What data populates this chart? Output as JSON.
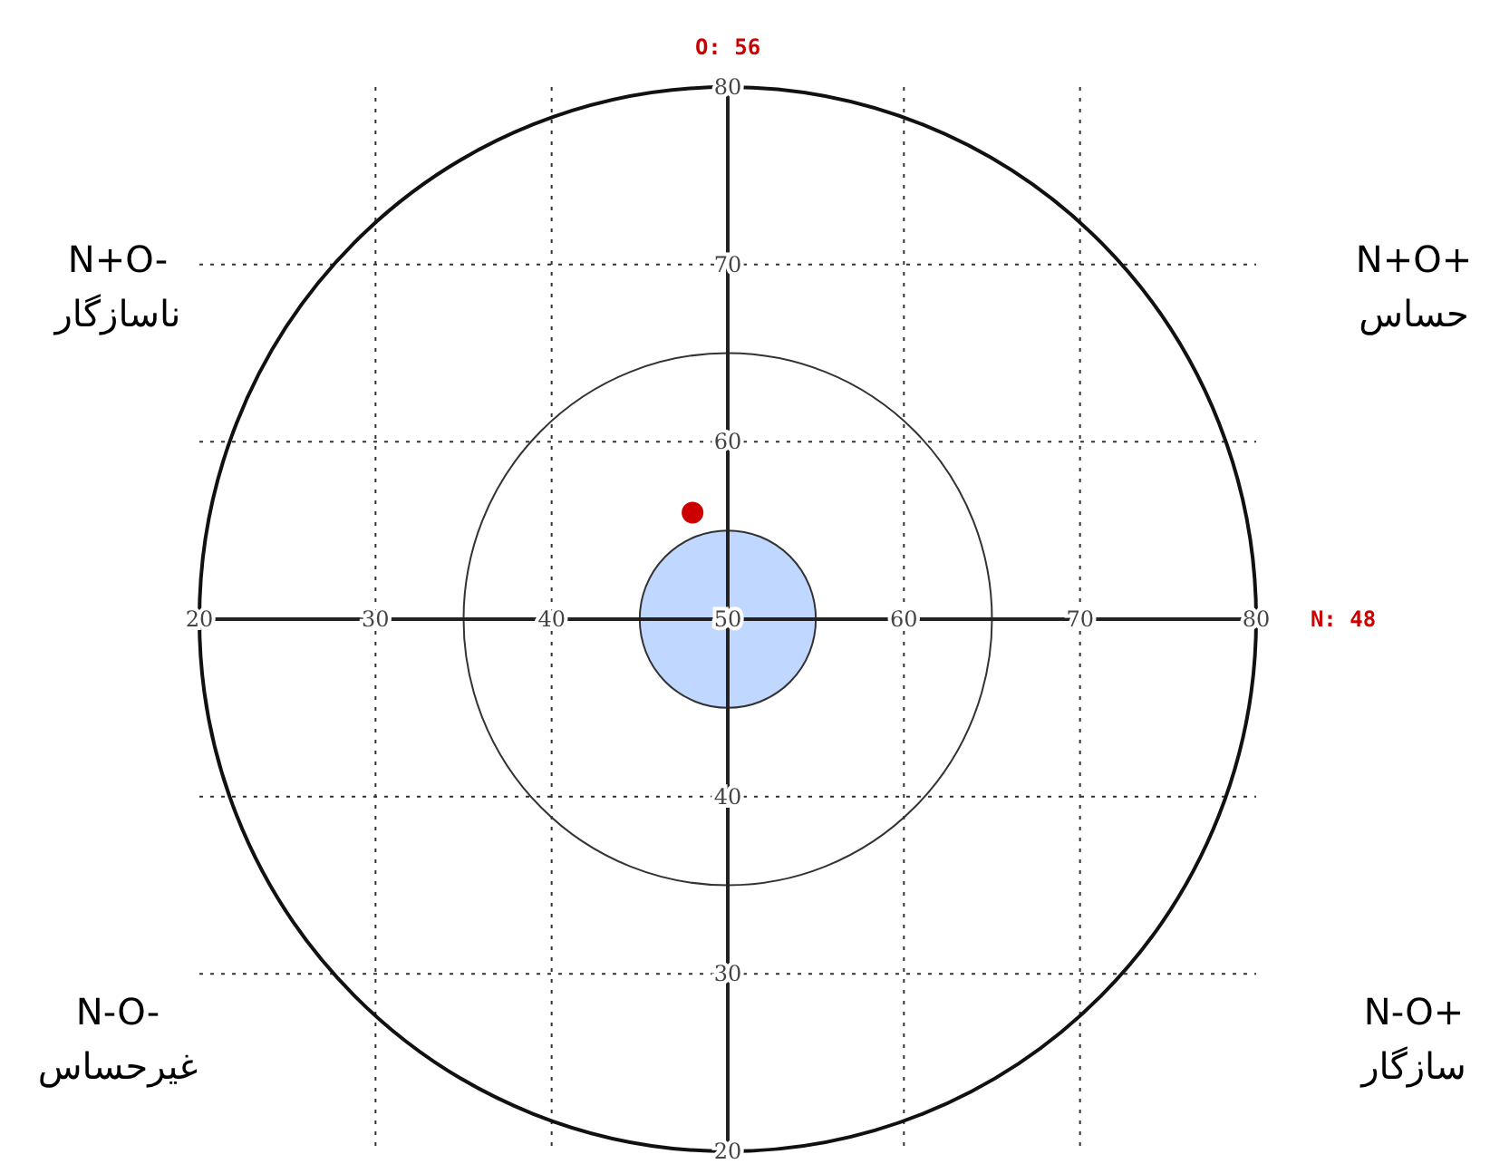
{
  "chart_data": {
    "type": "scatter",
    "series": [
      {
        "color": "#cc0000",
        "values": [
          56
        ],
        "x": [
          48
        ]
      }
    ],
    "xlim": [
      20,
      80
    ],
    "ylim": [
      20,
      80
    ],
    "xticks": [
      20,
      30,
      40,
      50,
      60,
      70,
      80
    ],
    "yticks": [
      20,
      30,
      40,
      {
        "value": 50,
        "label": null
      },
      60,
      70,
      80
    ],
    "grid": true,
    "marker": "circle",
    "annotations": [
      "O: 56",
      "N: 48",
      "N+O-\nناسازگار",
      "N+O+\nحساس",
      "N-O-\nغیرحساس",
      "N-O+\nسازگار"
    ]
  }
}
